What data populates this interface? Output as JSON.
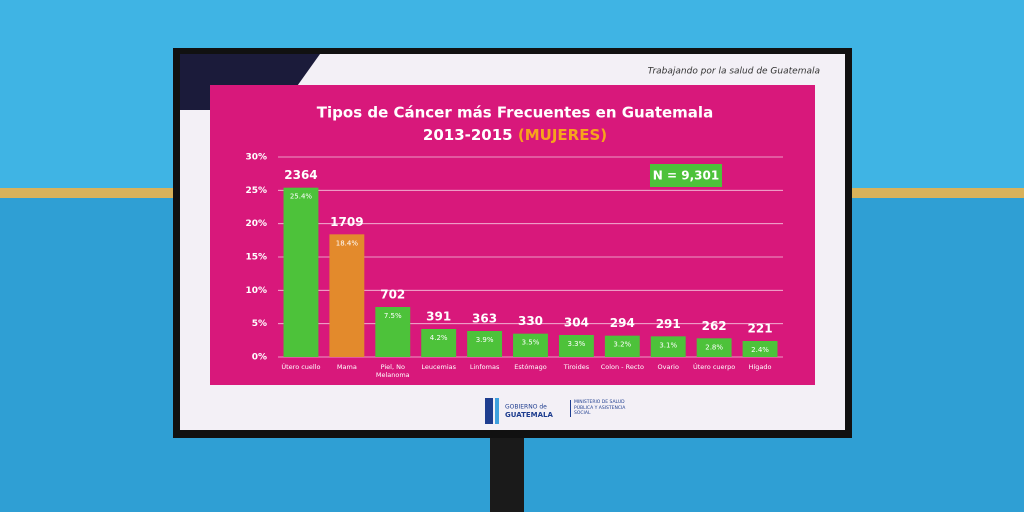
{
  "header": "Trabajando por la salud de Guatemala",
  "logo": {
    "line1": "GOBIERNO de",
    "line2": "GUATEMALA",
    "ministry": "MINISTERIO DE SALUD PÚBLICA Y ASISTENCIA SOCIAL"
  },
  "chart_data": {
    "type": "bar",
    "title": "Tipos de Cáncer más Frecuentes en Guatemala",
    "subtitle": "2013-2015",
    "subtitle_highlight": "(MUJERES)",
    "annotation": "N = 9,301",
    "categories": [
      "Útero cuello",
      "Mama",
      "Piel, No Melanoma",
      "Leucemias",
      "Linfomas",
      "Estómago",
      "Tiroides",
      "Colon - Recto",
      "Ovario",
      "Útero cuerpo",
      "Hígado"
    ],
    "values": [
      25.4,
      18.4,
      7.5,
      4.2,
      3.9,
      3.5,
      3.3,
      3.2,
      3.1,
      2.8,
      2.4
    ],
    "value_labels": [
      "25.4%",
      "18.4%",
      "7.5%",
      "4.2%",
      "3.9%",
      "3.5%",
      "3.3%",
      "3.2%",
      "3.1%",
      "2.8%",
      "2.4%"
    ],
    "counts": [
      2364,
      1709,
      702,
      391,
      363,
      330,
      304,
      294,
      291,
      262,
      221
    ],
    "colors": [
      "#4dc23a",
      "#e38a2c",
      "#4dc23a",
      "#4dc23a",
      "#4dc23a",
      "#4dc23a",
      "#4dc23a",
      "#4dc23a",
      "#4dc23a",
      "#4dc23a",
      "#4dc23a"
    ],
    "ylim": [
      0,
      30
    ],
    "yticks": [
      {
        "value": 0,
        "label": "0%"
      },
      {
        "value": 5,
        "label": "5%"
      },
      {
        "value": 10,
        "label": "10%"
      },
      {
        "value": 15,
        "label": "15%"
      },
      {
        "value": 20,
        "label": "20%"
      },
      {
        "value": 25,
        "label": "25%"
      },
      {
        "value": 30,
        "label": "30%"
      }
    ],
    "grid": true
  }
}
